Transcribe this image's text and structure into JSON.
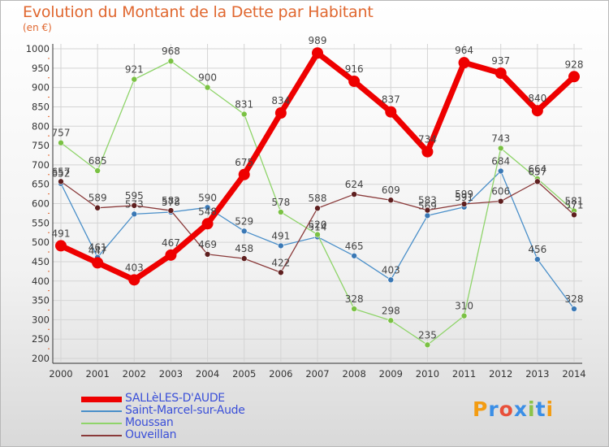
{
  "header": {
    "title": "Evolution du Montant de la Dette par Habitant",
    "subtitle": "(en €)"
  },
  "colors": {
    "title": "#e0672f",
    "grid": "#d4d4d4",
    "legend_text": "#3a4fd8",
    "brand_letters": [
      "#f39c12",
      "#3a8ee6",
      "#e8503a",
      "#3a8ee6",
      "#8bc34a",
      "#3a8ee6",
      "#f39c12"
    ]
  },
  "brand": {
    "text": "Proxiti"
  },
  "chart_data": {
    "type": "line",
    "title": "Evolution du Montant de la Dette par Habitant",
    "subtitle": "(en €)",
    "xlabel": "",
    "ylabel": "",
    "ylim": [
      200,
      1000
    ],
    "yticks": [
      200,
      250,
      300,
      350,
      400,
      450,
      500,
      550,
      600,
      650,
      700,
      750,
      800,
      850,
      900,
      950,
      1000
    ],
    "x": [
      "2000",
      "2001",
      "2002",
      "2003",
      "2004",
      "2005",
      "2006",
      "2007",
      "2008",
      "2009",
      "2010",
      "2011",
      "2012",
      "2013",
      "2014"
    ],
    "grid": true,
    "legend_position": "bottom-left",
    "series": [
      {
        "name": "Saint-Marcel-sur-Aude",
        "color": "#4a8fc9",
        "marker_color": "#3a78b5",
        "width": 1.3,
        "marker_r": 3.5,
        "values": [
          652,
          461,
          573,
          578,
          590,
          529,
          491,
          514,
          465,
          403,
          569,
          591,
          684,
          456,
          328
        ],
        "labels": [
          "652",
          "461",
          "573",
          "578",
          "590",
          "529",
          "491",
          "514",
          "465",
          "403",
          "569",
          "591",
          "684",
          "456",
          "328"
        ]
      },
      {
        "name": "Moussan",
        "color": "#8fd46a",
        "marker_color": "#7ac143",
        "width": 1.3,
        "marker_r": 3.5,
        "values": [
          757,
          685,
          921,
          968,
          900,
          831,
          578,
          520,
          328,
          298,
          235,
          310,
          743,
          664,
          581
        ],
        "labels": [
          "757",
          "685",
          "921",
          "968",
          "900",
          "831",
          "578",
          "520",
          "328",
          "298",
          "235",
          "310",
          "743",
          "664",
          "581"
        ]
      },
      {
        "name": "Ouveillan",
        "color": "#8a3a3a",
        "marker_color": "#5e1f1f",
        "width": 1.3,
        "marker_r": 3.5,
        "values": [
          657,
          589,
          595,
          582,
          469,
          458,
          422,
          588,
          624,
          609,
          583,
          599,
          606,
          657,
          571
        ],
        "labels": [
          "657",
          "589",
          "595",
          "582",
          "469",
          "458",
          "422",
          "588",
          "624",
          "609",
          "583",
          "599",
          "606",
          "657",
          "571"
        ]
      },
      {
        "name": "SALLèLES-D'AUDE",
        "color": "#ee0000",
        "marker_color": "#ee0000",
        "width": 7,
        "marker_r": 7,
        "values": [
          491,
          447,
          403,
          467,
          548,
          675,
          834,
          989,
          916,
          837,
          734,
          964,
          937,
          840,
          928
        ],
        "labels": [
          "491",
          "447",
          "403",
          "467",
          "548",
          "675",
          "834",
          "989",
          "916",
          "837",
          "734",
          "964",
          "937",
          "840",
          "928"
        ]
      }
    ],
    "legend_order": [
      "SALLèLES-D'AUDE",
      "Saint-Marcel-sur-Aude",
      "Moussan",
      "Ouveillan"
    ]
  }
}
